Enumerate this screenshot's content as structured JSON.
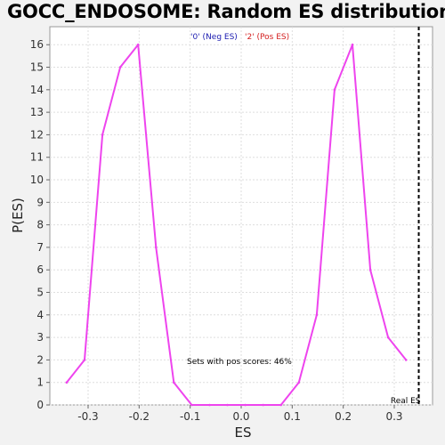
{
  "chart_data": {
    "type": "line",
    "title": "GOCC_ENDOSOME: Random ES distribution",
    "xlabel": "ES",
    "ylabel": "P(ES)",
    "xlim": [
      -0.375,
      0.375
    ],
    "ylim": [
      0,
      16.8
    ],
    "x_ticks": [
      -0.3,
      -0.2,
      -0.1,
      0.0,
      0.1,
      0.2,
      0.3
    ],
    "x_tick_labels": [
      "-0.3",
      "-0.2",
      "-0.1",
      "0.0",
      "0.1",
      "0.2",
      "0.3"
    ],
    "y_ticks": [
      0,
      1,
      2,
      3,
      4,
      5,
      6,
      7,
      8,
      9,
      10,
      11,
      12,
      13,
      14,
      15,
      16
    ],
    "y_tick_labels": [
      "0",
      "1",
      "2",
      "3",
      "4",
      "5",
      "6",
      "7",
      "8",
      "9",
      "10",
      "11",
      "12",
      "13",
      "14",
      "15",
      "16"
    ],
    "grid": true,
    "legend": [
      {
        "label": "'0' (Neg ES)",
        "color": "#1a1ab0"
      },
      {
        "label": "'2' (Pos ES)",
        "color": "#d42020"
      }
    ],
    "series": [
      {
        "color": "#ee44ee",
        "x": [
          -0.342,
          -0.307,
          -0.272,
          -0.237,
          -0.202,
          -0.167,
          -0.132,
          -0.097,
          -0.062,
          -0.027,
          0.008,
          0.043,
          0.078,
          0.113,
          0.148,
          0.183,
          0.218,
          0.253,
          0.288,
          0.323
        ],
        "y": [
          1,
          2,
          12,
          15,
          16,
          7,
          1,
          0,
          0,
          0,
          0,
          0,
          0,
          1,
          4,
          14,
          16,
          6,
          3,
          2
        ]
      }
    ],
    "real_es": {
      "x": 0.348,
      "label": "Real ES"
    },
    "annotation": "Sets with pos scores: 46%"
  }
}
